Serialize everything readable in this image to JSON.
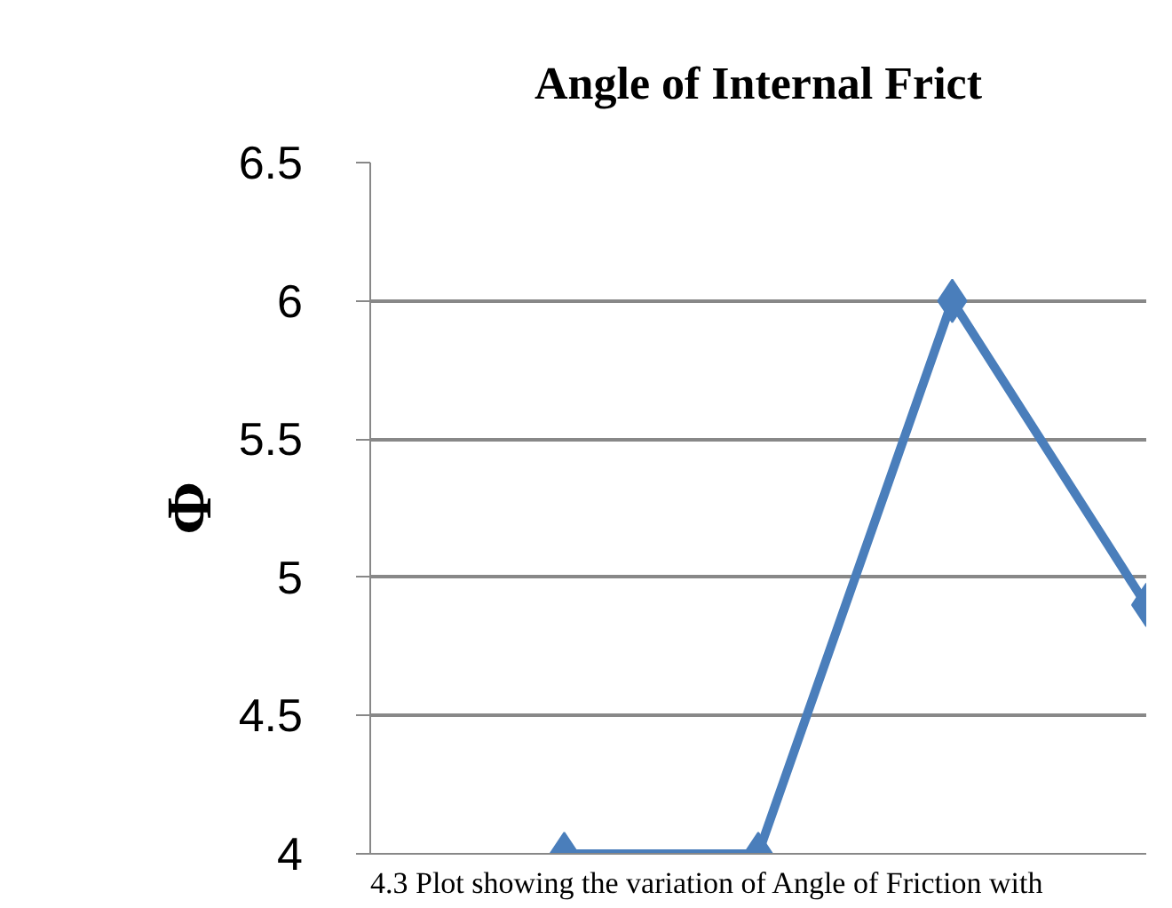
{
  "chart_data": {
    "type": "line",
    "title": "Angle of Internal Frict",
    "ylabel": "Φ",
    "annotations": [
      "4.3 Plot showing the variation of Angle of Friction with"
    ],
    "categories": [
      null,
      null,
      null,
      null
    ],
    "series": [
      {
        "color": "#4a7ebb",
        "values": [
          4.0,
          4.0,
          6.0,
          4.9
        ]
      }
    ],
    "ylim": [
      4,
      6.5
    ],
    "yticks": [
      4,
      4.5,
      5,
      5.5,
      6,
      6.5
    ],
    "grid": "y",
    "marker": "diamond",
    "line_style": "solid"
  }
}
